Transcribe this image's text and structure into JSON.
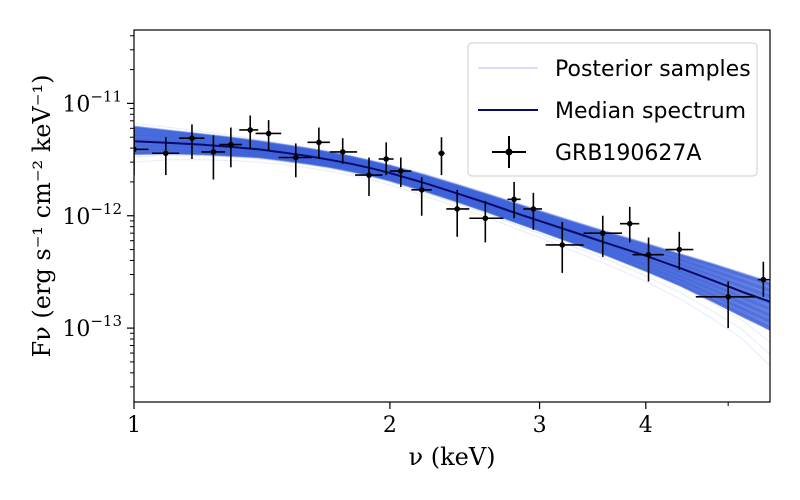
{
  "chart_data": {
    "type": "scatter",
    "title": "",
    "xlabel": "ν (keV)",
    "ylabel": "Fν (erg s⁻¹ cm⁻² keV⁻¹)",
    "xscale": "log",
    "yscale": "log",
    "xlim": [
      1.0,
      5.6
    ],
    "ylim": [
      2.2e-14,
      4.5e-11
    ],
    "x_ticks": [
      {
        "value": 1,
        "label": "1"
      },
      {
        "value": 2,
        "label": "2"
      },
      {
        "value": 3,
        "label": "3"
      },
      {
        "value": 4,
        "label": "4"
      }
    ],
    "y_ticks": [
      {
        "value": 1e-11,
        "base": "10",
        "exp": "−11"
      },
      {
        "value": 1e-12,
        "base": "10",
        "exp": "−12"
      },
      {
        "value": 1e-13,
        "base": "10",
        "exp": "−13"
      }
    ],
    "legend": {
      "position": "top-right",
      "entries": [
        {
          "label": "Posterior samples",
          "style": "band"
        },
        {
          "label": "Median spectrum",
          "style": "line"
        },
        {
          "label": "GRB190627A",
          "style": "errorbar"
        }
      ]
    },
    "series": [
      {
        "name": "GRB190627A",
        "kind": "errorbar",
        "color": "#000000",
        "points": [
          {
            "x": 1.0,
            "y": 3.9e-12,
            "xlo": 1.0,
            "xhi": 1.04,
            "ylo": 2.3e-12,
            "yhi": 6e-12
          },
          {
            "x": 1.09,
            "y": 3.6e-12,
            "xlo": 1.05,
            "xhi": 1.13,
            "ylo": 2.3e-12,
            "yhi": 5e-12
          },
          {
            "x": 1.17,
            "y": 4.9e-12,
            "xlo": 1.13,
            "xhi": 1.21,
            "ylo": 3.2e-12,
            "yhi": 6.5e-12
          },
          {
            "x": 1.24,
            "y": 3.7e-12,
            "xlo": 1.2,
            "xhi": 1.28,
            "ylo": 2.1e-12,
            "yhi": 5.2e-12
          },
          {
            "x": 1.3,
            "y": 4.3e-12,
            "xlo": 1.26,
            "xhi": 1.34,
            "ylo": 2.7e-12,
            "yhi": 6.1e-12
          },
          {
            "x": 1.37,
            "y": 5.8e-12,
            "xlo": 1.33,
            "xhi": 1.4,
            "ylo": 3.9e-12,
            "yhi": 7.8e-12
          },
          {
            "x": 1.44,
            "y": 5.4e-12,
            "xlo": 1.39,
            "xhi": 1.49,
            "ylo": 3.8e-12,
            "yhi": 7.1e-12
          },
          {
            "x": 1.55,
            "y": 3.3e-12,
            "xlo": 1.48,
            "xhi": 1.62,
            "ylo": 2.2e-12,
            "yhi": 4.4e-12
          },
          {
            "x": 1.65,
            "y": 4.5e-12,
            "xlo": 1.6,
            "xhi": 1.7,
            "ylo": 3.2e-12,
            "yhi": 6.1e-12
          },
          {
            "x": 1.76,
            "y": 3.7e-12,
            "xlo": 1.7,
            "xhi": 1.83,
            "ylo": 2.9e-12,
            "yhi": 4.9e-12
          },
          {
            "x": 1.89,
            "y": 2.3e-12,
            "xlo": 1.82,
            "xhi": 1.96,
            "ylo": 1.5e-12,
            "yhi": 3.3e-12
          },
          {
            "x": 1.98,
            "y": 3.2e-12,
            "xlo": 1.94,
            "xhi": 2.02,
            "ylo": 2.3e-12,
            "yhi": 4.5e-12
          },
          {
            "x": 2.06,
            "y": 2.5e-12,
            "xlo": 2.0,
            "xhi": 2.12,
            "ylo": 1.8e-12,
            "yhi": 3.3e-12
          },
          {
            "x": 2.18,
            "y": 1.7e-12,
            "xlo": 2.12,
            "xhi": 2.24,
            "ylo": 1e-12,
            "yhi": 2.2e-12
          },
          {
            "x": 2.3,
            "y": 3.6e-12,
            "xlo": 2.28,
            "xhi": 2.32,
            "ylo": 2.3e-12,
            "yhi": 5e-12
          },
          {
            "x": 2.4,
            "y": 1.15e-12,
            "xlo": 2.33,
            "xhi": 2.48,
            "ylo": 6.5e-13,
            "yhi": 1.7e-12
          },
          {
            "x": 2.59,
            "y": 9.5e-13,
            "xlo": 2.48,
            "xhi": 2.72,
            "ylo": 5.8e-13,
            "yhi": 1.35e-12
          },
          {
            "x": 2.8,
            "y": 1.4e-12,
            "xlo": 2.75,
            "xhi": 2.85,
            "ylo": 9.5e-13,
            "yhi": 2e-12
          },
          {
            "x": 2.95,
            "y": 1.15e-12,
            "xlo": 2.87,
            "xhi": 3.02,
            "ylo": 7.5e-13,
            "yhi": 1.6e-12
          },
          {
            "x": 3.19,
            "y": 5.5e-13,
            "xlo": 3.05,
            "xhi": 3.38,
            "ylo": 3.1e-13,
            "yhi": 8.8e-13
          },
          {
            "x": 3.56,
            "y": 7e-13,
            "xlo": 3.38,
            "xhi": 3.75,
            "ylo": 4.3e-13,
            "yhi": 1e-12
          },
          {
            "x": 3.83,
            "y": 8.5e-13,
            "xlo": 3.73,
            "xhi": 3.93,
            "ylo": 5.8e-13,
            "yhi": 1.2e-12
          },
          {
            "x": 4.03,
            "y": 4.5e-13,
            "xlo": 3.86,
            "xhi": 4.2,
            "ylo": 2.6e-13,
            "yhi": 6.4e-13
          },
          {
            "x": 4.38,
            "y": 5e-13,
            "xlo": 4.22,
            "xhi": 4.55,
            "ylo": 3.3e-13,
            "yhi": 7.2e-13
          },
          {
            "x": 5.0,
            "y": 1.9e-13,
            "xlo": 4.58,
            "xhi": 5.38,
            "ylo": 1e-13,
            "yhi": 2.6e-13
          },
          {
            "x": 5.5,
            "y": 2.7e-13,
            "xlo": 5.42,
            "xhi": 5.6,
            "ylo": 1.9e-13,
            "yhi": 3.9e-13
          }
        ]
      },
      {
        "name": "Median spectrum",
        "kind": "line",
        "color": "#0a0a6a",
        "x": [
          1.0,
          1.1,
          1.2,
          1.3,
          1.4,
          1.5,
          1.6,
          1.7,
          1.8,
          1.9,
          2.0,
          2.2,
          2.4,
          2.6,
          2.8,
          3.0,
          3.3,
          3.6,
          4.0,
          4.4,
          4.8,
          5.2,
          5.6
        ],
        "y": [
          4.6e-12,
          4.45e-12,
          4.3e-12,
          4.1e-12,
          3.9e-12,
          3.65e-12,
          3.4e-12,
          3.15e-12,
          2.9e-12,
          2.65e-12,
          2.4e-12,
          1.95e-12,
          1.58e-12,
          1.3e-12,
          1.07e-12,
          9e-13,
          7.1e-13,
          5.7e-13,
          4.4e-13,
          3.4e-13,
          2.65e-13,
          2.1e-13,
          1.72e-13
        ]
      },
      {
        "name": "Posterior samples",
        "kind": "band",
        "color": "#3a5fd9",
        "x": [
          1.0,
          1.1,
          1.2,
          1.3,
          1.4,
          1.5,
          1.6,
          1.7,
          1.8,
          1.9,
          2.0,
          2.2,
          2.4,
          2.6,
          2.8,
          3.0,
          3.3,
          3.6,
          4.0,
          4.4,
          4.8,
          5.2,
          5.6
        ],
        "lower": [
          3.5e-12,
          3.55e-12,
          3.5e-12,
          3.4e-12,
          3.3e-12,
          3.1e-12,
          2.9e-12,
          2.7e-12,
          2.48e-12,
          2.27e-12,
          2.05e-12,
          1.65e-12,
          1.33e-12,
          1.08e-12,
          8.8e-13,
          7.3e-13,
          5.6e-13,
          4.4e-13,
          3.2e-13,
          2.35e-13,
          1.7e-13,
          1.25e-13,
          9.5e-14
        ],
        "upper": [
          6.2e-12,
          5.7e-12,
          5.3e-12,
          4.95e-12,
          4.6e-12,
          4.25e-12,
          3.95e-12,
          3.65e-12,
          3.35e-12,
          3.05e-12,
          2.78e-12,
          2.28e-12,
          1.87e-12,
          1.55e-12,
          1.29e-12,
          1.09e-12,
          8.7e-13,
          7.1e-13,
          5.6e-13,
          4.5e-13,
          3.7e-13,
          3.05e-13,
          2.55e-13
        ],
        "outer_lower": [
          3e-12,
          3.15e-12,
          3.15e-12,
          3.1e-12,
          3e-12,
          2.85e-12,
          2.67e-12,
          2.48e-12,
          2.28e-12,
          2.08e-12,
          1.88e-12,
          1.5e-12,
          1.2e-12,
          9.7e-13,
          7.8e-13,
          6.4e-13,
          4.8e-13,
          3.7e-13,
          2.6e-13,
          1.8e-13,
          1.2e-13,
          8e-14,
          4.6e-14
        ],
        "outer_upper": [
          7.3e-12,
          6.6e-12,
          6e-12,
          5.5e-12,
          5.05e-12,
          4.6e-12,
          4.25e-12,
          3.9e-12,
          3.6e-12,
          3.3e-12,
          3e-12,
          2.5e-12,
          2.05e-12,
          1.7e-12,
          1.42e-12,
          1.2e-12,
          9.6e-13,
          7.9e-13,
          6.3e-13,
          5.1e-13,
          4.2e-13,
          3.5e-13,
          3e-13
        ]
      }
    ]
  }
}
